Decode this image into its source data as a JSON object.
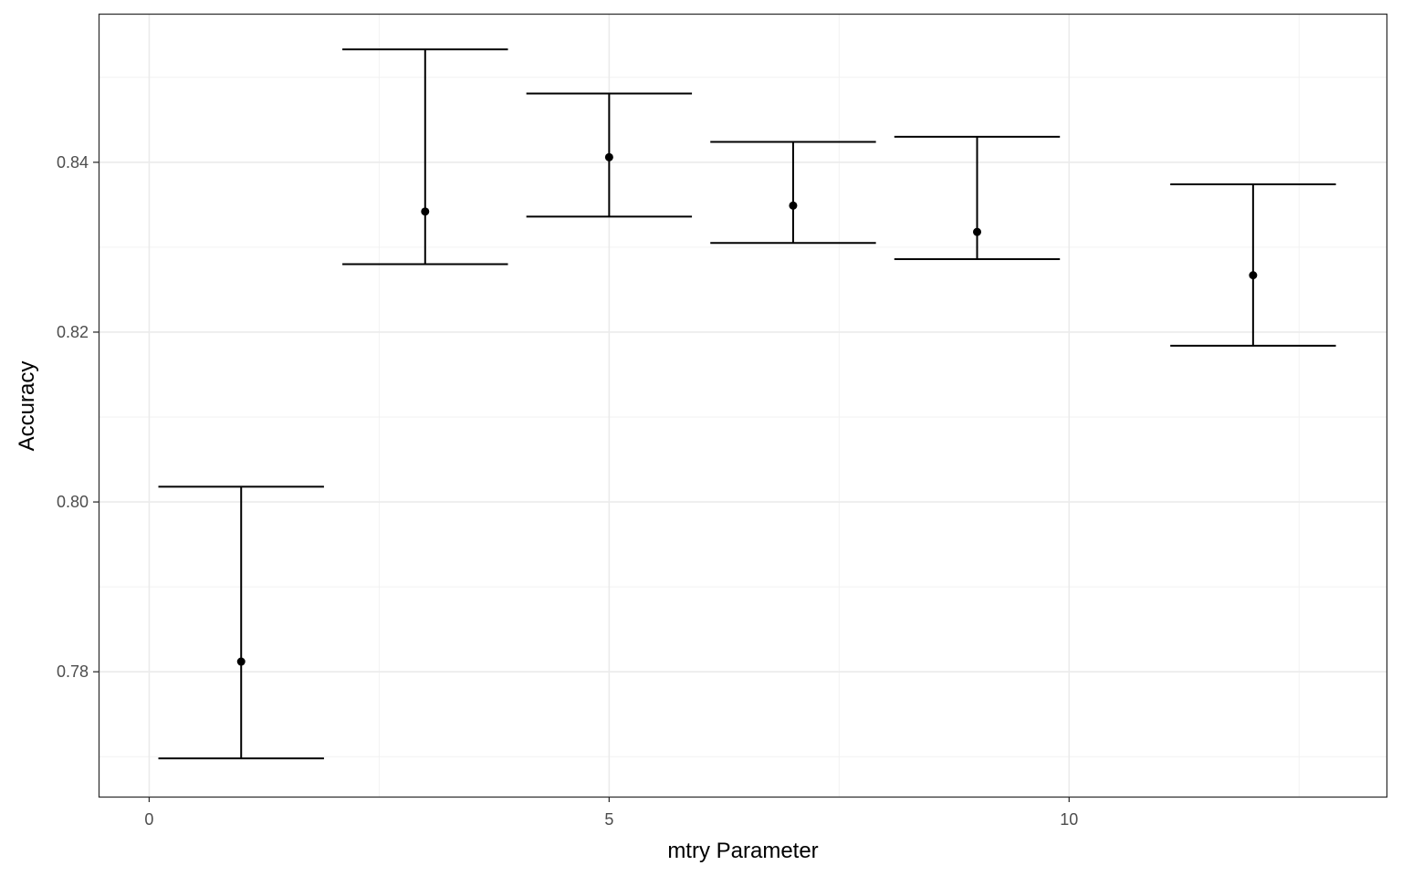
{
  "chart_data": {
    "type": "scatter",
    "xlabel": "mtry Parameter",
    "ylabel": "Accuracy",
    "xlim": [
      -0.55,
      13.45
    ],
    "ylim": [
      0.7653,
      0.8575
    ],
    "x_ticks": [
      0,
      5,
      10
    ],
    "x_tick_labels": [
      "0",
      "5",
      "10"
    ],
    "x_minor_ticks": [
      2.5,
      7.5,
      12.5
    ],
    "y_ticks": [
      0.78,
      0.8,
      0.82,
      0.84
    ],
    "y_tick_labels": [
      "0.78",
      "0.80",
      "0.82",
      "0.84"
    ],
    "y_minor_ticks": [
      0.77,
      0.79,
      0.81,
      0.83,
      0.85
    ],
    "grid": true,
    "errorbar_halfwidth": 0.9,
    "points": [
      {
        "x": 1,
        "y": 0.7812,
        "ymin": 0.7698,
        "ymax": 0.8018
      },
      {
        "x": 3,
        "y": 0.8342,
        "ymin": 0.828,
        "ymax": 0.8533
      },
      {
        "x": 5,
        "y": 0.8406,
        "ymin": 0.8336,
        "ymax": 0.8481
      },
      {
        "x": 7,
        "y": 0.8349,
        "ymin": 0.8305,
        "ymax": 0.8424
      },
      {
        "x": 9,
        "y": 0.8318,
        "ymin": 0.8286,
        "ymax": 0.843
      },
      {
        "x": 12,
        "y": 0.8267,
        "ymin": 0.8184,
        "ymax": 0.8374
      }
    ]
  }
}
